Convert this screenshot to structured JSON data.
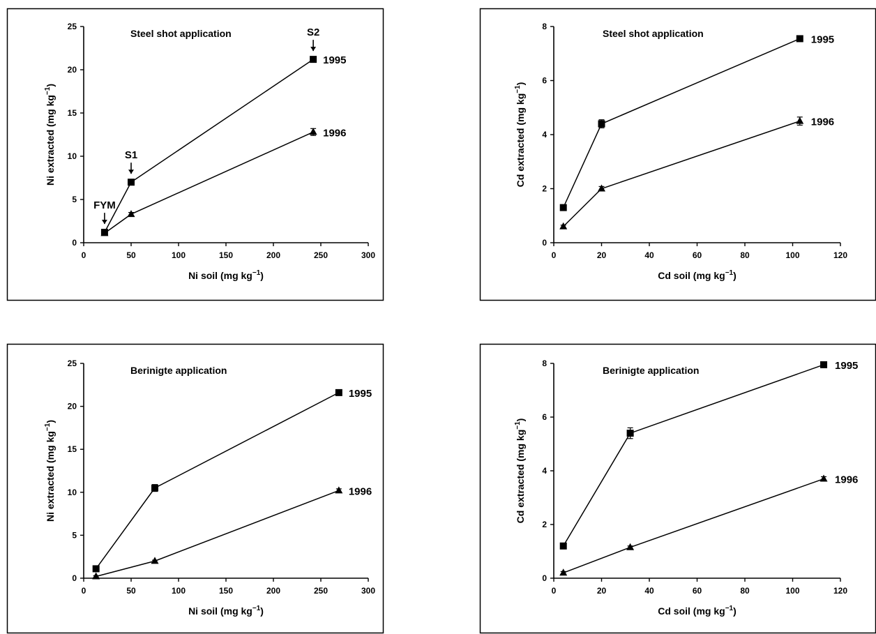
{
  "chart_data": [
    {
      "type": "line",
      "title": "Steel shot application",
      "xlabel": "Ni soil (mg kg",
      "xlabel_sup": "−1",
      "xlabel_end": ")",
      "ylabel": "Ni extracted (mg kg",
      "ylabel_sup": "−1",
      "ylabel_end": ")",
      "xlim": [
        0,
        300
      ],
      "ylim": [
        0,
        25
      ],
      "xticks": [
        "0",
        "50",
        "100",
        "150",
        "200",
        "250",
        "300"
      ],
      "yticks": [
        "0",
        "5",
        "10",
        "15",
        "20",
        "25"
      ],
      "series": [
        {
          "name": "1995",
          "marker": "square",
          "x": [
            22,
            50,
            242
          ],
          "y": [
            1.2,
            7.0,
            21.2
          ],
          "err": [
            0.2,
            0.2,
            0.3
          ]
        },
        {
          "name": "1996",
          "marker": "triangle",
          "x": [
            22,
            50,
            242
          ],
          "y": [
            1.1,
            3.3,
            12.8
          ],
          "err": [
            0.1,
            0.2,
            0.4
          ]
        }
      ],
      "annotations": [
        {
          "text": "FYM",
          "x": 22,
          "y": 1.2
        },
        {
          "text": "S1",
          "x": 50,
          "y": 7.0
        },
        {
          "text": "S2",
          "x": 242,
          "y": 21.2
        }
      ]
    },
    {
      "type": "line",
      "title": "Steel shot application",
      "xlabel": "Cd soil (mg kg",
      "xlabel_sup": "−1",
      "xlabel_end": ")",
      "ylabel": "Cd extracted (mg kg",
      "ylabel_sup": "−1",
      "ylabel_end": ")",
      "xlim": [
        0,
        120
      ],
      "ylim": [
        0,
        8
      ],
      "xticks": [
        "0",
        "20",
        "40",
        "60",
        "80",
        "100",
        "120"
      ],
      "yticks": [
        "0",
        "2",
        "4",
        "6",
        "8"
      ],
      "series": [
        {
          "name": "1995",
          "marker": "square",
          "x": [
            4,
            20,
            103
          ],
          "y": [
            1.3,
            4.4,
            7.55
          ],
          "err": [
            0.1,
            0.15,
            0.1
          ]
        },
        {
          "name": "1996",
          "marker": "triangle",
          "x": [
            4,
            20,
            103
          ],
          "y": [
            0.6,
            2.0,
            4.5
          ],
          "err": [
            0.05,
            0.08,
            0.15
          ]
        }
      ],
      "annotations": []
    },
    {
      "type": "line",
      "title": "Berinigte application",
      "xlabel": "Ni soil (mg kg",
      "xlabel_sup": "−1",
      "xlabel_end": ")",
      "ylabel": "Ni extracted (mg kg",
      "ylabel_sup": "−1",
      "ylabel_end": ")",
      "xlim": [
        0,
        300
      ],
      "ylim": [
        0,
        25
      ],
      "xticks": [
        "0",
        "50",
        "100",
        "150",
        "200",
        "250",
        "300"
      ],
      "yticks": [
        "0",
        "5",
        "10",
        "15",
        "20",
        "25"
      ],
      "series": [
        {
          "name": "1995",
          "marker": "square",
          "x": [
            13,
            75,
            269
          ],
          "y": [
            1.1,
            10.5,
            21.6
          ],
          "err": [
            0.2,
            0.4,
            0.2
          ]
        },
        {
          "name": "1996",
          "marker": "triangle",
          "x": [
            13,
            75,
            269
          ],
          "y": [
            0.2,
            2.0,
            10.2
          ],
          "err": [
            0.1,
            0.1,
            0.2
          ]
        }
      ],
      "annotations": []
    },
    {
      "type": "line",
      "title": "Berinigte application",
      "xlabel": "Cd soil (mg kg",
      "xlabel_sup": "−1",
      "xlabel_end": ")",
      "ylabel": "Cd extracted (mg kg",
      "ylabel_sup": "−1",
      "ylabel_end": ")",
      "xlim": [
        0,
        120
      ],
      "ylim": [
        0,
        8
      ],
      "xticks": [
        "0",
        "20",
        "40",
        "60",
        "80",
        "100",
        "120"
      ],
      "yticks": [
        "0",
        "2",
        "4",
        "6",
        "8"
      ],
      "series": [
        {
          "name": "1995",
          "marker": "square",
          "x": [
            4,
            32,
            113
          ],
          "y": [
            1.2,
            5.4,
            7.95
          ],
          "err": [
            0.1,
            0.2,
            0.1
          ]
        },
        {
          "name": "1996",
          "marker": "triangle",
          "x": [
            4,
            32,
            113
          ],
          "y": [
            0.2,
            1.15,
            3.7
          ],
          "err": [
            0.05,
            0.05,
            0.08
          ]
        }
      ],
      "annotations": []
    }
  ]
}
